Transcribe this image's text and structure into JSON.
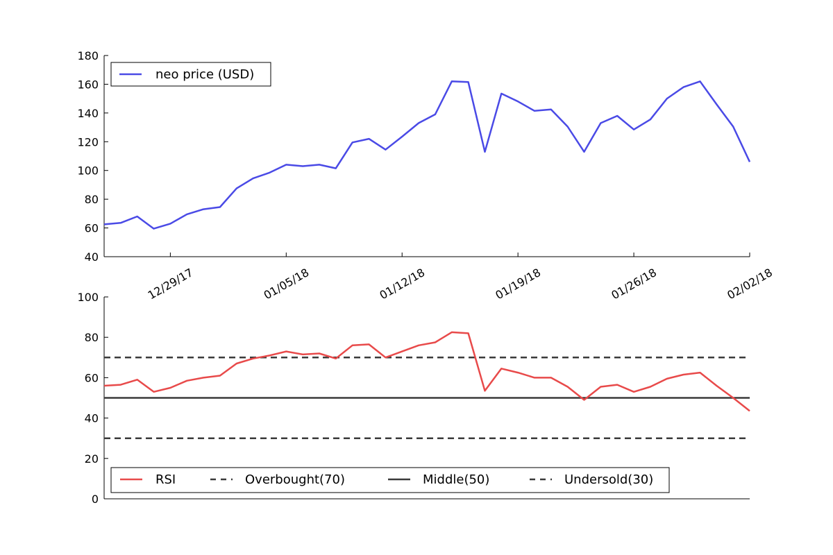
{
  "chart_data": [
    {
      "type": "line",
      "title": "",
      "xlabel": "",
      "ylabel": "",
      "ylim": [
        40,
        180
      ],
      "yticks": [
        40,
        60,
        80,
        100,
        120,
        140,
        160,
        180
      ],
      "x": [
        "12/25/17",
        "12/26/17",
        "12/27/17",
        "12/28/17",
        "12/29/17",
        "12/30/17",
        "12/31/17",
        "01/01/18",
        "01/02/18",
        "01/03/18",
        "01/04/18",
        "01/05/18",
        "01/06/18",
        "01/07/18",
        "01/08/18",
        "01/09/18",
        "01/10/18",
        "01/11/18",
        "01/12/18",
        "01/13/18",
        "01/14/18",
        "01/15/18",
        "01/16/18",
        "01/17/18",
        "01/18/18",
        "01/19/18",
        "01/20/18",
        "01/21/18",
        "01/22/18",
        "01/23/18",
        "01/24/18",
        "01/25/18",
        "01/26/18",
        "01/27/18",
        "01/28/18",
        "01/29/18",
        "01/30/18",
        "01/31/18",
        "02/01/18",
        "02/02/18"
      ],
      "xticks": [
        "12/29/17",
        "01/05/18",
        "01/12/18",
        "01/19/18",
        "01/26/18",
        "02/02/18"
      ],
      "series": [
        {
          "name": "neo price (USD)",
          "color": "#4a4ae6",
          "values": [
            62.5,
            63.5,
            68,
            59.5,
            63,
            69.5,
            73,
            74.5,
            87.5,
            94.5,
            98.5,
            104,
            103,
            104,
            101.5,
            119.5,
            122,
            114.5,
            123.5,
            133,
            139,
            162,
            161.5,
            113,
            153.5,
            148,
            141.5,
            142.5,
            130.5,
            113,
            133,
            138,
            128.5,
            135.5,
            150,
            158,
            162,
            146,
            130.5,
            106
          ]
        }
      ],
      "legend": {
        "position": "top-left"
      },
      "grid": false
    },
    {
      "type": "line",
      "title": "",
      "xlabel": "",
      "ylabel": "",
      "ylim": [
        0,
        100
      ],
      "yticks": [
        0,
        20,
        40,
        60,
        80,
        100
      ],
      "series": [
        {
          "name": "RSI",
          "color": "#e84a4a",
          "values": [
            56,
            56.5,
            59,
            53,
            55,
            58.5,
            60,
            61,
            67,
            69.5,
            71,
            73,
            71.5,
            72,
            69.5,
            76,
            76.5,
            70,
            73,
            76,
            77.5,
            82.5,
            82,
            53.5,
            64.5,
            62.5,
            60,
            60,
            55.5,
            49,
            55.5,
            56.5,
            53,
            55.5,
            59.5,
            61.5,
            62.5,
            56,
            50,
            43.5
          ]
        }
      ],
      "reference_lines": [
        {
          "name": "Overbought(70)",
          "value": 70,
          "style": "dashed",
          "color": "#3a3a3a"
        },
        {
          "name": "Middle(50)",
          "value": 50,
          "style": "solid",
          "color": "#3a3a3a"
        },
        {
          "name": "Undersold(30)",
          "value": 30,
          "style": "dashed",
          "color": "#3a3a3a"
        }
      ],
      "legend": {
        "position": "bottom-left",
        "orientation": "horizontal"
      },
      "grid": false
    }
  ]
}
